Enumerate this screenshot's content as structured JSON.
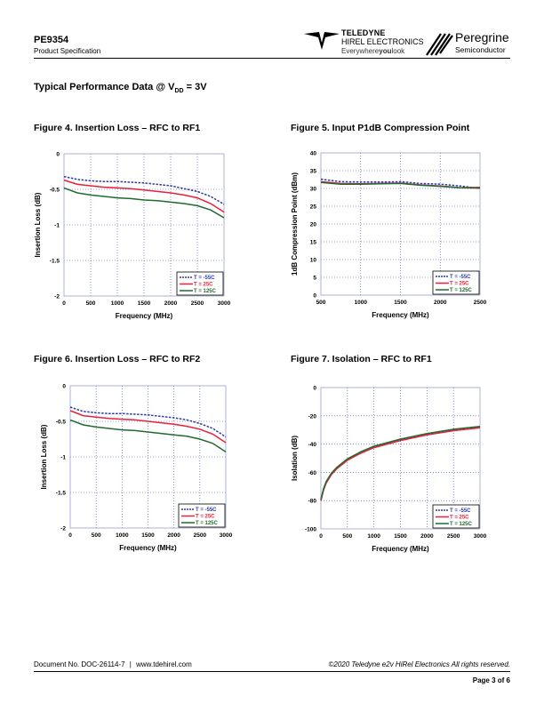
{
  "header": {
    "part_number": "PE9354",
    "doc_type": "Product Specification",
    "teledyne_logo": {
      "name": "TELEDYNE",
      "sub": "HIREL ELECTRONICS",
      "tagline_pre": "Everywhere",
      "tagline_bold": "you",
      "tagline_post": "look"
    },
    "peregrine_logo": {
      "name": "Peregrine",
      "sub": "Semiconductor"
    }
  },
  "section_title": {
    "pre": "Typical Performance Data @ V",
    "sub": "DD",
    "post": " = 3V"
  },
  "footer": {
    "doc_no": "Document No. DOC-26114-7",
    "url": "www.tdehirel.com",
    "copyright": "©2020 Teledyne e2v HiRel Electronics  All rights reserved.",
    "page": "Page  3 of 6"
  },
  "colors": {
    "m55": "#2b3aa8",
    "p25": "#e8213a",
    "p125": "#1f6b2e",
    "grid": "#3a4ab0",
    "frame": "#9aa0cc"
  },
  "chart_data": [
    {
      "type": "line",
      "title": "Figure 4. Insertion Loss – RFC to RF1",
      "xlabel": "Frequency (MHz)",
      "ylabel": "Insertion Loss (dB)",
      "xlim": [
        0,
        3000
      ],
      "ylim": [
        -2,
        0
      ],
      "xticks": [
        0,
        500,
        1000,
        1500,
        2000,
        2500,
        3000
      ],
      "yticks": [
        0,
        -0.5,
        -1,
        -1.5,
        -2
      ],
      "ytick_labels": [
        "0",
        "-0.5",
        "-1",
        "-1.5",
        "-2"
      ],
      "grid": true,
      "legend": "bottom-right",
      "x": [
        0,
        250,
        500,
        750,
        1000,
        1250,
        1500,
        1750,
        2000,
        2250,
        2500,
        2750,
        3000
      ],
      "series": [
        {
          "name": "T = -55C",
          "color": "#2b3aa8",
          "dash": true,
          "values": [
            -0.32,
            -0.36,
            -0.38,
            -0.39,
            -0.39,
            -0.4,
            -0.41,
            -0.43,
            -0.45,
            -0.49,
            -0.53,
            -0.6,
            -0.71
          ]
        },
        {
          "name": "T = 25C",
          "color": "#e8213a",
          "dash": false,
          "values": [
            -0.37,
            -0.43,
            -0.45,
            -0.47,
            -0.48,
            -0.49,
            -0.51,
            -0.53,
            -0.55,
            -0.58,
            -0.62,
            -0.7,
            -0.82
          ]
        },
        {
          "name": "T = 125C",
          "color": "#1f6b2e",
          "dash": false,
          "values": [
            -0.48,
            -0.55,
            -0.58,
            -0.6,
            -0.62,
            -0.63,
            -0.65,
            -0.66,
            -0.68,
            -0.7,
            -0.73,
            -0.79,
            -0.9
          ]
        }
      ]
    },
    {
      "type": "line",
      "title": "Figure 5. Input P1dB Compression Point",
      "xlabel": "Frequency (MHz)",
      "ylabel": "1dB Compression Point (dBm)",
      "xlim": [
        500,
        2500
      ],
      "ylim": [
        0,
        40
      ],
      "xticks": [
        500,
        1000,
        1500,
        2000,
        2500
      ],
      "yticks": [
        0,
        5,
        10,
        15,
        20,
        25,
        30,
        35,
        40
      ],
      "ytick_labels": [
        "0",
        "5",
        "10",
        "15",
        "20",
        "25",
        "30",
        "35",
        "40"
      ],
      "grid": true,
      "legend": "bottom-right",
      "x": [
        500,
        750,
        1000,
        1250,
        1500,
        1750,
        2000,
        2250,
        2500
      ],
      "series": [
        {
          "name": "T = -55C",
          "color": "#2b3aa8",
          "dash": true,
          "values": [
            32.6,
            31.9,
            31.8,
            31.8,
            31.9,
            31.4,
            31.2,
            30.7,
            30.0
          ]
        },
        {
          "name": "T = 25C",
          "color": "#e8213a",
          "dash": false,
          "values": [
            31.9,
            31.4,
            31.3,
            31.4,
            31.5,
            31.0,
            30.7,
            30.2,
            30.3
          ]
        },
        {
          "name": "T = 125C",
          "color": "#1f6b2e",
          "dash": false,
          "values": [
            31.7,
            31.2,
            31.2,
            31.3,
            31.4,
            30.9,
            30.6,
            30.2,
            30.1
          ]
        }
      ]
    },
    {
      "type": "line",
      "title": "Figure 6. Insertion Loss – RFC to RF2",
      "xlabel": "Frequency (MHz)",
      "ylabel": "Insertion Loss (dB)",
      "xlim": [
        0,
        3000
      ],
      "ylim": [
        -2,
        0
      ],
      "xticks": [
        0,
        500,
        1000,
        1500,
        2000,
        2500,
        3000
      ],
      "yticks": [
        0,
        -0.5,
        -1,
        -1.5,
        -2
      ],
      "ytick_labels": [
        "0",
        "-0.5",
        "-1",
        "-1.5",
        "-2"
      ],
      "grid": true,
      "legend": "bottom-right",
      "x": [
        0,
        250,
        500,
        750,
        1000,
        1250,
        1500,
        1750,
        2000,
        2250,
        2500,
        2750,
        3000
      ],
      "series": [
        {
          "name": "T = -55C",
          "color": "#2b3aa8",
          "dash": true,
          "values": [
            -0.3,
            -0.36,
            -0.38,
            -0.39,
            -0.39,
            -0.4,
            -0.41,
            -0.43,
            -0.45,
            -0.48,
            -0.53,
            -0.6,
            -0.72
          ]
        },
        {
          "name": "T = 25C",
          "color": "#e8213a",
          "dash": false,
          "values": [
            -0.35,
            -0.42,
            -0.44,
            -0.46,
            -0.47,
            -0.48,
            -0.5,
            -0.52,
            -0.54,
            -0.57,
            -0.61,
            -0.68,
            -0.8
          ]
        },
        {
          "name": "T = 125C",
          "color": "#1f6b2e",
          "dash": false,
          "values": [
            -0.48,
            -0.55,
            -0.58,
            -0.6,
            -0.62,
            -0.63,
            -0.65,
            -0.67,
            -0.69,
            -0.71,
            -0.75,
            -0.81,
            -0.93
          ]
        }
      ]
    },
    {
      "type": "line",
      "title": "Figure 7. Isolation – RFC to RF1",
      "xlabel": "Frequency (MHz)",
      "ylabel": "Isolation (dB)",
      "xlim": [
        0,
        3000
      ],
      "ylim": [
        -100,
        0
      ],
      "xticks": [
        0,
        500,
        1000,
        1500,
        2000,
        2500,
        3000
      ],
      "yticks": [
        0,
        -20,
        -40,
        -60,
        -80,
        -100
      ],
      "ytick_labels": [
        "0",
        "-20",
        "-40",
        "-60",
        "-80",
        "-100"
      ],
      "grid": true,
      "legend": "bottom-right",
      "x": [
        0,
        50,
        100,
        200,
        300,
        500,
        750,
        1000,
        1500,
        2000,
        2500,
        3000
      ],
      "series": [
        {
          "name": "T = -55C",
          "color": "#2b3aa8",
          "dash": true,
          "values": [
            -80,
            -72,
            -67,
            -61,
            -57,
            -51,
            -46,
            -42,
            -37,
            -33,
            -30,
            -28
          ]
        },
        {
          "name": "T = 25C",
          "color": "#e8213a",
          "dash": false,
          "values": [
            -80,
            -72.5,
            -67.5,
            -61.5,
            -57.5,
            -51.5,
            -46.5,
            -42.5,
            -37.5,
            -33.5,
            -30.5,
            -28.5
          ]
        },
        {
          "name": "T = 125C",
          "color": "#1f6b2e",
          "dash": false,
          "values": [
            -79,
            -71.5,
            -66.5,
            -60.5,
            -56.5,
            -50.5,
            -45.5,
            -41.5,
            -36.5,
            -32.5,
            -29.5,
            -27.5
          ]
        }
      ]
    }
  ]
}
